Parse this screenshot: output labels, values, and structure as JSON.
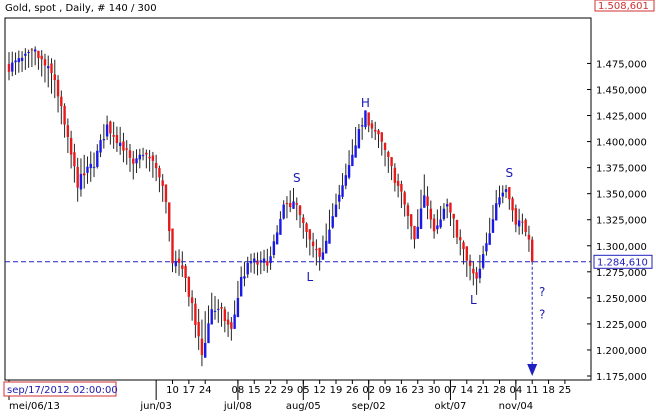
{
  "chart_data": {
    "type": "candlestick",
    "title": "Gold, spot , Daily, # 140 / 300",
    "current_price_label": "1.508,601",
    "reference_line_label": "1.284,610",
    "reference_line_value": 1284.61,
    "crosshair_time_label": "sep/17/2012 02:00:00",
    "ylim": [
      1170,
      1505
    ],
    "yticks": [
      {
        "v": 1475,
        "label": "1.475,000"
      },
      {
        "v": 1450,
        "label": "1.450,000"
      },
      {
        "v": 1425,
        "label": "1.425,000"
      },
      {
        "v": 1400,
        "label": "1.400,000"
      },
      {
        "v": 1375,
        "label": "1.375,000"
      },
      {
        "v": 1350,
        "label": "1.350,000"
      },
      {
        "v": 1325,
        "label": "1.325,000"
      },
      {
        "v": 1300,
        "label": "1.300,000"
      },
      {
        "v": 1275,
        "label": "1.275,000"
      },
      {
        "v": 1250,
        "label": "1.250,000"
      },
      {
        "v": 1225,
        "label": "1.225,000"
      },
      {
        "v": 1200,
        "label": "1.200,000"
      },
      {
        "v": 1175,
        "label": "1.175,000"
      }
    ],
    "xticks_day": [
      {
        "i": 50,
        "label": "10"
      },
      {
        "i": 55,
        "label": "17"
      },
      {
        "i": 60,
        "label": "24"
      },
      {
        "i": 70,
        "label": "08"
      },
      {
        "i": 75,
        "label": "15"
      },
      {
        "i": 80,
        "label": "22"
      },
      {
        "i": 85,
        "label": "29"
      },
      {
        "i": 90,
        "label": "05"
      },
      {
        "i": 95,
        "label": "12"
      },
      {
        "i": 100,
        "label": "19"
      },
      {
        "i": 105,
        "label": "26"
      },
      {
        "i": 110,
        "label": "02"
      },
      {
        "i": 115,
        "label": "09"
      },
      {
        "i": 120,
        "label": "16"
      },
      {
        "i": 125,
        "label": "23"
      },
      {
        "i": 130,
        "label": "30"
      },
      {
        "i": 135,
        "label": "07"
      },
      {
        "i": 140,
        "label": "14"
      },
      {
        "i": 145,
        "label": "21"
      },
      {
        "i": 150,
        "label": "28"
      },
      {
        "i": 155,
        "label": "04"
      },
      {
        "i": 160,
        "label": "11"
      },
      {
        "i": 165,
        "label": "18"
      },
      {
        "i": 170,
        "label": "25"
      }
    ],
    "xticks_month": [
      {
        "i": 0,
        "label": "mei/06/13"
      },
      {
        "i": 45,
        "label": "jun/03"
      },
      {
        "i": 70,
        "label": "jul/08"
      },
      {
        "i": 90,
        "label": "aug/05"
      },
      {
        "i": 110,
        "label": "sep/02"
      },
      {
        "i": 135,
        "label": "okt/07"
      },
      {
        "i": 155,
        "label": "nov/04"
      }
    ],
    "annotations": [
      {
        "text": "S",
        "i": 88,
        "v": 1361
      },
      {
        "text": "H",
        "i": 109,
        "v": 1433
      },
      {
        "text": "S",
        "i": 153,
        "v": 1366
      },
      {
        "text": "L",
        "i": 92,
        "v": 1266
      },
      {
        "text": "L",
        "i": 142,
        "v": 1244
      },
      {
        "text": "?",
        "i": 160,
        "v": 1252
      },
      {
        "text": "?",
        "i": 160,
        "v": 1230
      }
    ],
    "projection_arrow": {
      "i": 160,
      "from": 1284.61,
      "to": 1175
    },
    "last_bar_index": 160,
    "ohlc_path": [
      [
        0,
        1472,
        1487,
        1458
      ],
      [
        8,
        1485,
        1492,
        1472
      ],
      [
        14,
        1460,
        1480,
        1440
      ],
      [
        18,
        1400,
        1425,
        1388
      ],
      [
        21,
        1360,
        1385,
        1342
      ],
      [
        26,
        1380,
        1392,
        1365
      ],
      [
        30,
        1415,
        1425,
        1398
      ],
      [
        35,
        1395,
        1412,
        1380
      ],
      [
        38,
        1375,
        1392,
        1362
      ],
      [
        41,
        1390,
        1398,
        1378
      ],
      [
        45,
        1375,
        1390,
        1360
      ],
      [
        48,
        1345,
        1360,
        1330
      ],
      [
        50,
        1280,
        1300,
        1272
      ],
      [
        53,
        1282,
        1295,
        1270
      ],
      [
        56,
        1240,
        1260,
        1225
      ],
      [
        59,
        1195,
        1230,
        1182
      ],
      [
        62,
        1240,
        1255,
        1228
      ],
      [
        65,
        1235,
        1248,
        1220
      ],
      [
        68,
        1218,
        1235,
        1205
      ],
      [
        71,
        1268,
        1284,
        1255
      ],
      [
        74,
        1285,
        1296,
        1272
      ],
      [
        77,
        1282,
        1296,
        1270
      ],
      [
        80,
        1288,
        1300,
        1276
      ],
      [
        84,
        1335,
        1346,
        1322
      ],
      [
        87,
        1345,
        1358,
        1334
      ],
      [
        91,
        1310,
        1326,
        1295
      ],
      [
        95,
        1285,
        1300,
        1275
      ],
      [
        98,
        1320,
        1335,
        1305
      ],
      [
        102,
        1355,
        1370,
        1342
      ],
      [
        106,
        1400,
        1414,
        1385
      ],
      [
        109,
        1425,
        1432,
        1410
      ],
      [
        112,
        1410,
        1420,
        1398
      ],
      [
        115,
        1390,
        1402,
        1375
      ],
      [
        118,
        1365,
        1380,
        1352
      ],
      [
        121,
        1340,
        1355,
        1325
      ],
      [
        124,
        1305,
        1320,
        1295
      ],
      [
        127,
        1350,
        1372,
        1335
      ],
      [
        130,
        1318,
        1332,
        1305
      ],
      [
        134,
        1340,
        1348,
        1326
      ],
      [
        137,
        1312,
        1325,
        1298
      ],
      [
        140,
        1285,
        1300,
        1270
      ],
      [
        143,
        1265,
        1282,
        1252
      ],
      [
        146,
        1300,
        1315,
        1288
      ],
      [
        149,
        1345,
        1356,
        1332
      ],
      [
        152,
        1355,
        1362,
        1342
      ],
      [
        155,
        1325,
        1340,
        1312
      ],
      [
        158,
        1318,
        1330,
        1306
      ],
      [
        160,
        1285,
        1310,
        1282
      ]
    ]
  }
}
